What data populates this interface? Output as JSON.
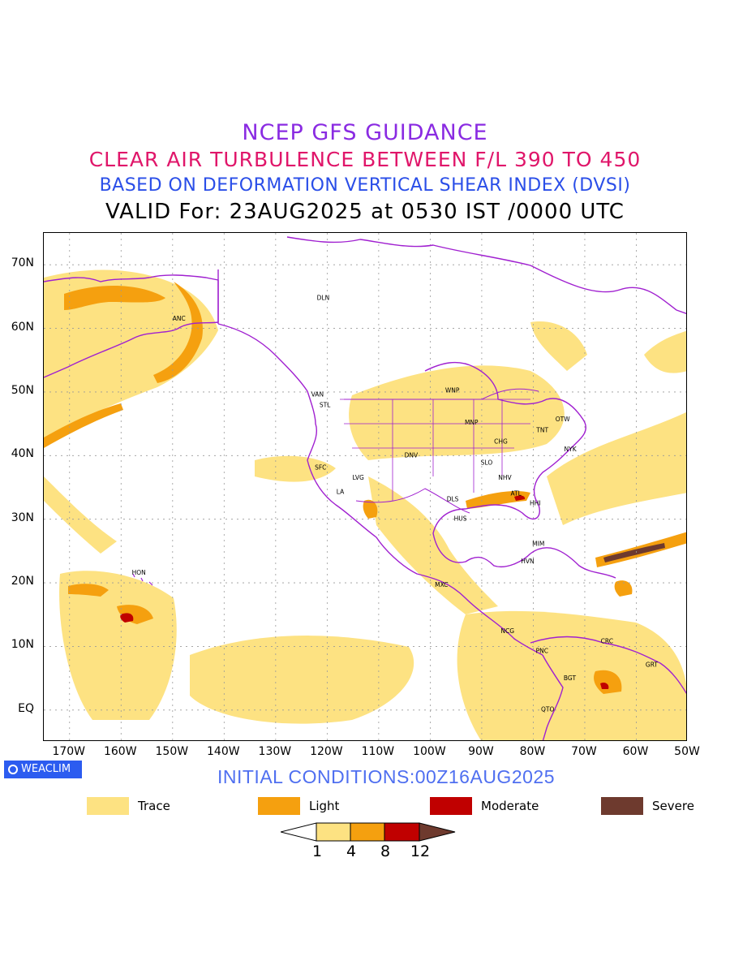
{
  "titles": {
    "line1": "NCEP GFS GUIDANCE",
    "line2": "CLEAR AIR TURBULENCE BETWEEN F/L 390 TO 450",
    "line3": "BASED ON DEFORMATION VERTICAL SHEAR INDEX (DVSI)",
    "line4": "VALID For: 23AUG2025 at 0530 IST /0000 UTC"
  },
  "colors": {
    "line1": "#8a2be2",
    "line2": "#e0166a",
    "line3": "#2a4ee8",
    "line4": "#000000",
    "init": "#4f6ff0",
    "coast": "#a020d0",
    "grid": "#999999",
    "trace": "#fde282",
    "light": "#f5a00f",
    "moderate": "#c00000",
    "severe": "#6e3a2e"
  },
  "map": {
    "extent": {
      "lon_min": -175,
      "lon_max": -50,
      "lat_min": -5,
      "lat_max": 75
    },
    "lat_labels": [
      "70N",
      "60N",
      "50N",
      "40N",
      "30N",
      "20N",
      "10N",
      "EQ"
    ],
    "lat_values": [
      70,
      60,
      50,
      40,
      30,
      20,
      10,
      0
    ],
    "lon_labels": [
      "170W",
      "160W",
      "150W",
      "140W",
      "130W",
      "120W",
      "110W",
      "100W",
      "90W",
      "80W",
      "70W",
      "60W",
      "50W"
    ],
    "lon_values": [
      -170,
      -160,
      -150,
      -140,
      -130,
      -120,
      -110,
      -100,
      -90,
      -80,
      -70,
      -60,
      -50
    ],
    "cities": [
      {
        "name": "DLN",
        "lon": -122,
        "lat": 64.5
      },
      {
        "name": "ANC",
        "lon": -150,
        "lat": 61.2
      },
      {
        "name": "VAN",
        "lon": -123.1,
        "lat": 49.3
      },
      {
        "name": "STL",
        "lon": -121.5,
        "lat": 47.6
      },
      {
        "name": "WNP",
        "lon": -97.1,
        "lat": 49.9
      },
      {
        "name": "MNP",
        "lon": -93.3,
        "lat": 44.9
      },
      {
        "name": "OTW",
        "lon": -75.7,
        "lat": 45.4
      },
      {
        "name": "TNT",
        "lon": -79.4,
        "lat": 43.7
      },
      {
        "name": "CHG",
        "lon": -87.6,
        "lat": 41.9
      },
      {
        "name": "NYK",
        "lon": -74.0,
        "lat": 40.7
      },
      {
        "name": "DNV",
        "lon": -105,
        "lat": 39.7
      },
      {
        "name": "SFC",
        "lon": -122.4,
        "lat": 37.8
      },
      {
        "name": "SLO",
        "lon": -90.2,
        "lat": 38.6
      },
      {
        "name": "LVG",
        "lon": -115.1,
        "lat": 36.2
      },
      {
        "name": "NHV",
        "lon": -86.8,
        "lat": 36.2
      },
      {
        "name": "LA",
        "lon": -118.2,
        "lat": 34.0
      },
      {
        "name": "ATL",
        "lon": -84.4,
        "lat": 33.7
      },
      {
        "name": "DLS",
        "lon": -96.8,
        "lat": 32.8
      },
      {
        "name": "HHI",
        "lon": -80.7,
        "lat": 32.2
      },
      {
        "name": "HUS",
        "lon": -95.4,
        "lat": 29.8
      },
      {
        "name": "MIM",
        "lon": -80.2,
        "lat": 25.8
      },
      {
        "name": "HVN",
        "lon": -82.4,
        "lat": 23.1
      },
      {
        "name": "HON",
        "lon": -157.9,
        "lat": 21.3
      },
      {
        "name": "MXC",
        "lon": -99.1,
        "lat": 19.4
      },
      {
        "name": "NCG",
        "lon": -86.3,
        "lat": 12.1
      },
      {
        "name": "CRC",
        "lon": -66.9,
        "lat": 10.5
      },
      {
        "name": "PNC",
        "lon": -79.5,
        "lat": 8.98
      },
      {
        "name": "GRT",
        "lon": -58.2,
        "lat": 6.8
      },
      {
        "name": "BGT",
        "lon": -74.1,
        "lat": 4.7
      },
      {
        "name": "QTO",
        "lon": -78.5,
        "lat": -0.2
      }
    ]
  },
  "brand": {
    "label": "WEACLIM",
    "icon": "circle-logo-icon"
  },
  "init_label": "INITIAL CONDITIONS:00Z16AUG2025",
  "legend": [
    {
      "label": "Trace",
      "color": "#fde282"
    },
    {
      "label": "Light",
      "color": "#f5a00f"
    },
    {
      "label": "Moderate",
      "color": "#c00000"
    },
    {
      "label": "Severe",
      "color": "#6e3a2e"
    }
  ],
  "colorbar": {
    "ticks": [
      "1",
      "4",
      "8",
      "12"
    ]
  }
}
